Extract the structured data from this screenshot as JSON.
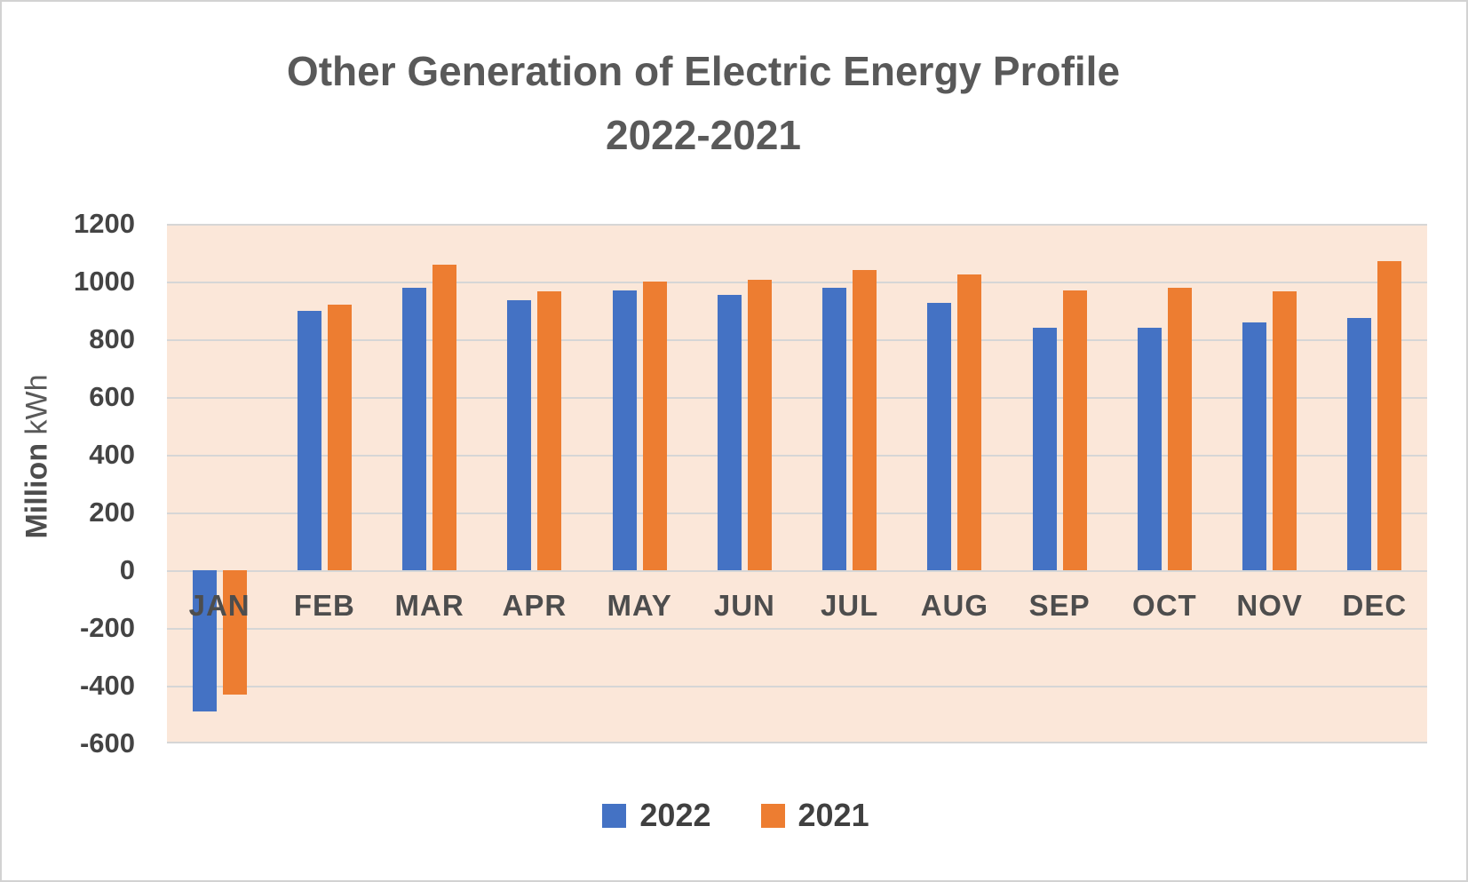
{
  "figure": {
    "title_line1": "Other Generation of Electric Energy Profile",
    "title_line2": "2022-2021"
  },
  "chart_data": {
    "type": "bar",
    "title": "Other Generation of Electric Energy Profile 2022-2021",
    "title_line1": "Other Generation of Electric Energy Profile",
    "title_line2": "2022-2021",
    "ylabel": "Million kWh",
    "ylabel_bold": "Million",
    "ylabel_unit": "kWh",
    "categories": [
      "JAN",
      "FEB",
      "MAR",
      "APR",
      "MAY",
      "JUN",
      "JUL",
      "AUG",
      "SEP",
      "OCT",
      "NOV",
      "DEC"
    ],
    "series": [
      {
        "name": "2022",
        "color": "#4472C4",
        "values": [
          -490,
          900,
          980,
          935,
          970,
          955,
          980,
          925,
          840,
          840,
          860,
          875
        ]
      },
      {
        "name": "2021",
        "color": "#ED7D31",
        "values": [
          -430,
          920,
          1060,
          965,
          1000,
          1005,
          1040,
          1025,
          970,
          980,
          965,
          1070
        ]
      }
    ],
    "ylim": [
      -600,
      1200
    ],
    "yticks": [
      1200,
      1000,
      800,
      600,
      400,
      200,
      0,
      -200,
      -400,
      -600
    ],
    "grid": true,
    "legend_position": "bottom",
    "plot_bg": "#FBE7D9",
    "gridline_color": "#D6D6D6"
  }
}
